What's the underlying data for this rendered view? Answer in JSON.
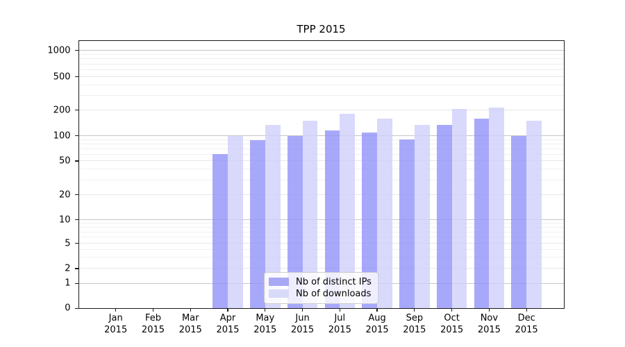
{
  "title": "TPP 2015",
  "chart_data": {
    "type": "bar",
    "title": "TPP 2015",
    "x_ticks": [
      {
        "line1": "Jan",
        "line2": "2015"
      },
      {
        "line1": "Feb",
        "line2": "2015"
      },
      {
        "line1": "Mar",
        "line2": "2015"
      },
      {
        "line1": "Apr",
        "line2": "2015"
      },
      {
        "line1": "May",
        "line2": "2015"
      },
      {
        "line1": "Jun",
        "line2": "2015"
      },
      {
        "line1": "Jul",
        "line2": "2015"
      },
      {
        "line1": "Aug",
        "line2": "2015"
      },
      {
        "line1": "Sep",
        "line2": "2015"
      },
      {
        "line1": "Oct",
        "line2": "2015"
      },
      {
        "line1": "Nov",
        "line2": "2015"
      },
      {
        "line1": "Dec",
        "line2": "2015"
      }
    ],
    "series": [
      {
        "name": "Nb of distinct IPs",
        "color": "#a8a8f6",
        "bar_fill": "rgba(146,146,250,0.8)",
        "values": [
          0,
          0,
          0,
          60,
          88,
          100,
          115,
          110,
          90,
          135,
          160,
          100
        ]
      },
      {
        "name": "Nb of downloads",
        "color": "#d9d9f9",
        "bar_fill": "rgba(207,207,250,0.8)",
        "values": [
          0,
          0,
          0,
          100,
          135,
          150,
          180,
          160,
          135,
          205,
          215,
          150
        ]
      }
    ],
    "y_axis": {
      "scale": "symlog",
      "ylim": [
        0,
        1000
      ],
      "ticks": [
        0,
        1,
        2,
        5,
        10,
        20,
        50,
        100,
        200,
        500,
        1000
      ],
      "tick_labels": [
        "0",
        "1",
        "2",
        "5",
        "10",
        "20",
        "50",
        "100",
        "200",
        "500",
        "1000"
      ]
    },
    "grid": {
      "enabled": true,
      "power10_color": "#c6c6c6",
      "labeled_color": "#e6e6e6",
      "minor_color": "#efefef"
    },
    "legend": {
      "position": "lower center"
    }
  }
}
